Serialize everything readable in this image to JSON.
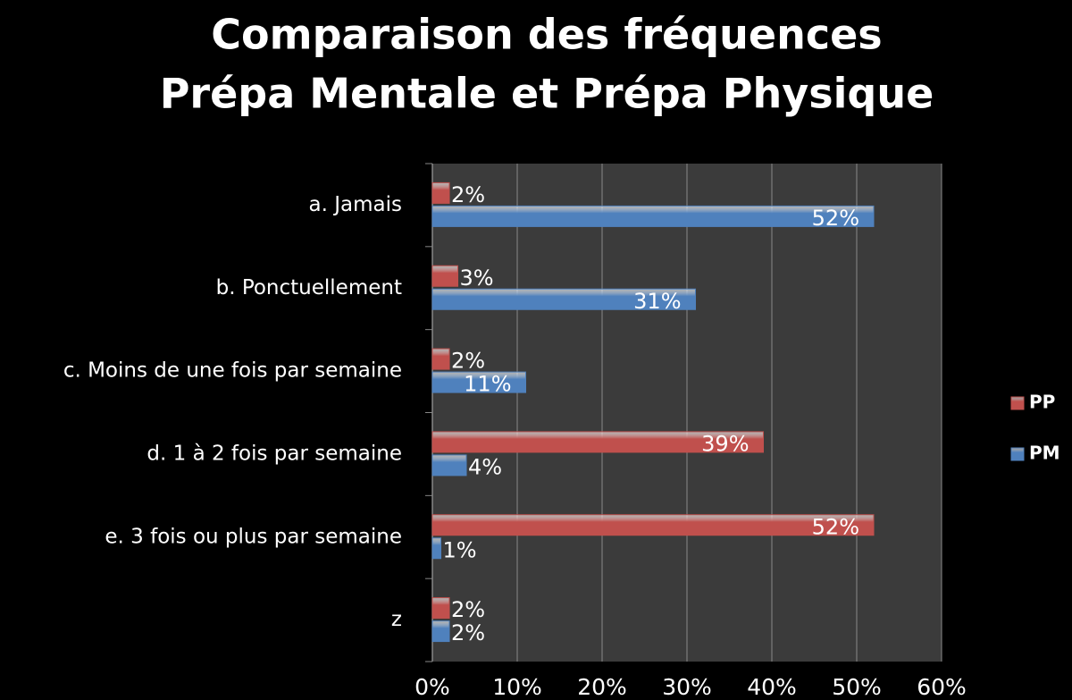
{
  "chart_data": {
    "type": "hbar",
    "title": "Comparaison des fréquences",
    "subtitle": "Prépa Mentale et Prépa Physique",
    "categories": [
      "a. Jamais",
      "b. Ponctuellement",
      "c. Moins de une fois par semaine",
      "d. 1 à 2 fois par semaine",
      "e. 3 fois ou plus par semaine",
      "z"
    ],
    "series": [
      {
        "name": "PP",
        "color": "#c0504d",
        "values": [
          2,
          3,
          2,
          39,
          52,
          2
        ],
        "value_labels": [
          "2%",
          "3%",
          "2%",
          "39%",
          "52%",
          "2%"
        ]
      },
      {
        "name": "PM",
        "color": "#4f81bd",
        "values": [
          52,
          31,
          11,
          4,
          1,
          2
        ],
        "value_labels": [
          "52%",
          "31%",
          "11%",
          "4%",
          "1%",
          "2%"
        ]
      }
    ],
    "xlim": [
      0,
      60
    ],
    "xticks": [
      {
        "value": 0,
        "label": "0%"
      },
      {
        "value": 10,
        "label": "10%"
      },
      {
        "value": 20,
        "label": "20%"
      },
      {
        "value": 30,
        "label": "30%"
      },
      {
        "value": 40,
        "label": "40%"
      },
      {
        "value": 50,
        "label": "50%"
      },
      {
        "value": 60,
        "label": "60%"
      }
    ],
    "grid": true,
    "legend": "right"
  }
}
